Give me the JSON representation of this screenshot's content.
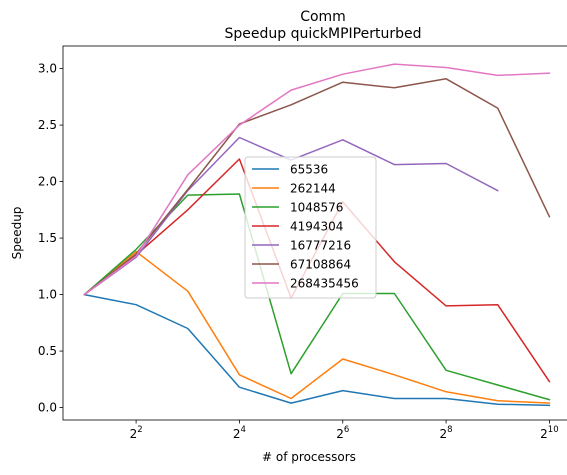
{
  "chart_data": {
    "type": "line",
    "title": "Comm",
    "subtitle": "Speedup quickMPIPerturbed",
    "xlabel": "# of processors",
    "ylabel": "Speedup",
    "x_scale": "log2",
    "x": [
      2,
      4,
      8,
      16,
      32,
      64,
      128,
      256,
      512,
      1024
    ],
    "xlim": [
      1.5,
      1350
    ],
    "ylim": [
      -0.11,
      3.2
    ],
    "x_ticks": [
      {
        "value": 4,
        "base": "2",
        "exp": "2"
      },
      {
        "value": 16,
        "base": "2",
        "exp": "4"
      },
      {
        "value": 64,
        "base": "2",
        "exp": "6"
      },
      {
        "value": 256,
        "base": "2",
        "exp": "8"
      },
      {
        "value": 1024,
        "base": "2",
        "exp": "10"
      }
    ],
    "y_ticks": [
      {
        "value": 0.0,
        "label": "0.0"
      },
      {
        "value": 0.5,
        "label": "0.5"
      },
      {
        "value": 1.0,
        "label": "1.0"
      },
      {
        "value": 1.5,
        "label": "1.5"
      },
      {
        "value": 2.0,
        "label": "2.0"
      },
      {
        "value": 2.5,
        "label": "2.5"
      },
      {
        "value": 3.0,
        "label": "3.0"
      }
    ],
    "grid": false,
    "legend_position": "center",
    "series": [
      {
        "name": "65536",
        "color": "#1f77b4",
        "values": [
          1.0,
          0.91,
          0.7,
          0.18,
          0.04,
          0.15,
          0.08,
          0.08,
          0.03,
          0.02
        ]
      },
      {
        "name": "262144",
        "color": "#ff7f0e",
        "values": [
          1.0,
          1.38,
          1.03,
          0.29,
          0.08,
          0.43,
          0.29,
          0.14,
          0.06,
          0.04
        ]
      },
      {
        "name": "1048576",
        "color": "#2ca02c",
        "values": [
          1.0,
          1.4,
          1.88,
          1.89,
          0.3,
          1.01,
          1.01,
          0.33,
          0.2,
          0.07
        ]
      },
      {
        "name": "4194304",
        "color": "#d62728",
        "values": [
          1.0,
          1.35,
          1.75,
          2.2,
          0.97,
          1.82,
          1.29,
          0.9,
          0.91,
          0.23
        ]
      },
      {
        "name": "16777216",
        "color": "#9467bd",
        "values": [
          1.0,
          1.33,
          1.92,
          2.39,
          2.19,
          2.37,
          2.15,
          2.16,
          1.92,
          null
        ]
      },
      {
        "name": "67108864",
        "color": "#8c564b",
        "values": [
          1.0,
          1.36,
          1.93,
          2.51,
          2.68,
          2.88,
          2.83,
          2.91,
          2.65,
          1.69
        ]
      },
      {
        "name": "268435456",
        "color": "#e377c2",
        "values": [
          1.0,
          1.34,
          2.06,
          2.5,
          2.81,
          2.95,
          3.04,
          3.01,
          2.94,
          2.96
        ]
      }
    ]
  }
}
